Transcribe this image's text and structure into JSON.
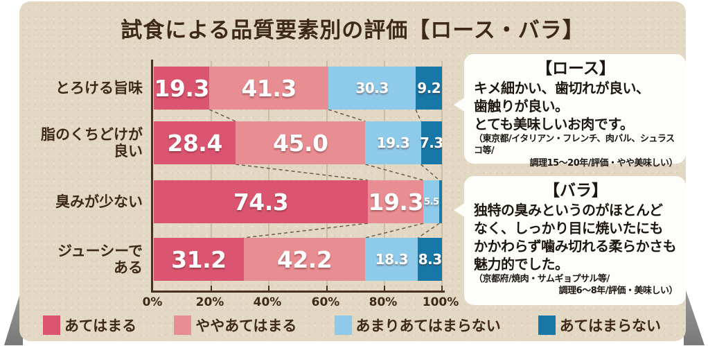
{
  "title": "試食による品質要素別の評価【ロース・バラ】",
  "chart_data": {
    "type": "bar",
    "variant": "horizontal-stacked",
    "title": "試食による品質要素別の評価【ロース・バラ】",
    "categories": [
      "とろける旨味",
      "脂のくちどけが\n良い",
      "臭みが少ない",
      "ジューシーで\nある"
    ],
    "series": [
      {
        "name": "あてはまる",
        "color": "#dc5570",
        "values": [
          19.3,
          28.4,
          74.3,
          31.2
        ]
      },
      {
        "name": "ややあてはまる",
        "color": "#e88d92",
        "values": [
          41.3,
          45.0,
          19.3,
          42.2
        ]
      },
      {
        "name": "あまりあてはまらない",
        "color": "#8ecae9",
        "values": [
          30.3,
          19.3,
          5.5,
          18.3
        ]
      },
      {
        "name": "あてはまらない",
        "color": "#1778a7",
        "values": [
          9.2,
          7.3,
          0.9,
          8.3
        ]
      }
    ],
    "xticks": [
      "0%",
      "20%",
      "40%",
      "60%",
      "80%",
      "100%"
    ],
    "xlim": [
      0,
      100
    ],
    "grid": true,
    "legend_position": "bottom"
  },
  "callouts": [
    {
      "title": "【ロース】",
      "body": "キメ細かい、歯切れが良い、\n歯触りが良い。\nとても美味しいお肉です。",
      "note_line1": "（東京都/イタリアン・フレンチ、肉バル、シュラスコ等/",
      "note_line2": "調理15～20年/評価・やや美味しい）"
    },
    {
      "title": "【バラ】",
      "body": "独特の臭みというのがほとんど\nなく、しっかり目に焼いたにも\nかかわらず噛み切れる柔らかさも\n魅力的でした。",
      "note_line1": "（京都府/焼肉・サムギョプサル等/",
      "note_line2": "調理6～8年/評価・美味しい）"
    }
  ],
  "colors": {
    "paper": "#e3d8c3",
    "text_brown": "#3e2914",
    "axis": "#45311d",
    "gridline": "#c9bda3",
    "bubble_bg": "#fdfdfa",
    "fold_shadow": "#8e8e8e"
  }
}
